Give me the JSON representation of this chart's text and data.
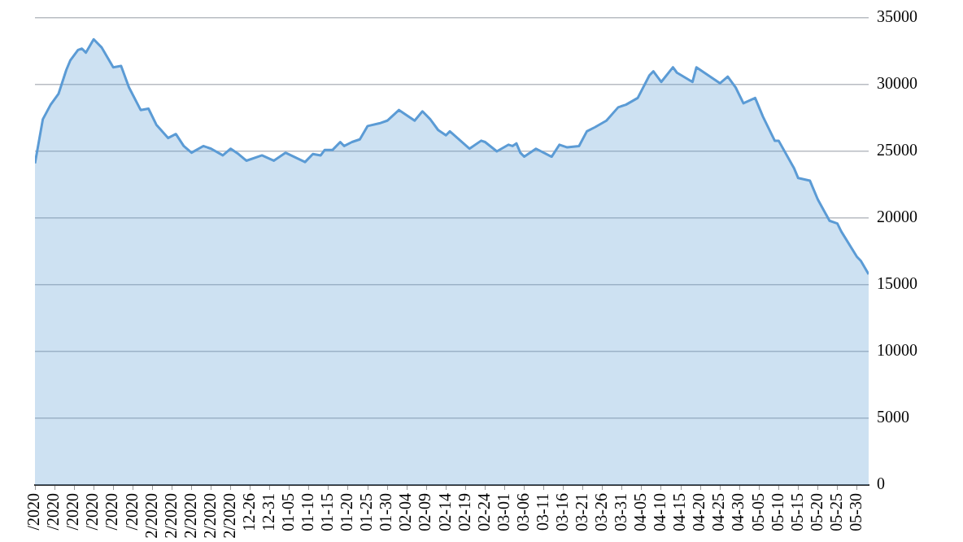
{
  "chart_data": {
    "type": "area",
    "x": [
      "2020-11-01",
      "2020-11-03",
      "2020-11-05",
      "2020-11-07",
      "2020-11-09",
      "2020-11-10",
      "2020-11-12",
      "2020-11-13",
      "2020-11-14",
      "2020-11-16",
      "2020-11-18",
      "2020-11-21",
      "2020-11-23",
      "2020-11-25",
      "2020-11-28",
      "2020-11-30",
      "2020-12-02",
      "2020-12-05",
      "2020-12-07",
      "2020-12-09",
      "2020-12-11",
      "2020-12-14",
      "2020-12-16",
      "2020-12-19",
      "2020-12-21",
      "2020-12-23",
      "2020-12-25",
      "2020-12-29",
      "2021-01-01",
      "2021-01-04",
      "2021-01-09",
      "2021-01-11",
      "2021-01-13",
      "2021-01-14",
      "2021-01-16",
      "2021-01-18",
      "2021-01-19",
      "2021-01-21",
      "2021-01-23",
      "2021-01-25",
      "2021-01-28",
      "2021-01-30",
      "2021-02-02",
      "2021-02-06",
      "2021-02-08",
      "2021-02-10",
      "2021-02-12",
      "2021-02-14",
      "2021-02-15",
      "2021-02-20",
      "2021-02-23",
      "2021-02-24",
      "2021-02-27",
      "2021-03-02",
      "2021-03-03",
      "2021-03-04",
      "2021-03-05",
      "2021-03-06",
      "2021-03-09",
      "2021-03-13",
      "2021-03-15",
      "2021-03-17",
      "2021-03-20",
      "2021-03-22",
      "2021-03-24",
      "2021-03-27",
      "2021-03-30",
      "2021-04-01",
      "2021-04-04",
      "2021-04-07",
      "2021-04-08",
      "2021-04-10",
      "2021-04-13",
      "2021-04-14",
      "2021-04-18",
      "2021-04-19",
      "2021-04-21",
      "2021-04-25",
      "2021-04-27",
      "2021-04-29",
      "2021-05-01",
      "2021-05-04",
      "2021-05-06",
      "2021-05-09",
      "2021-05-10",
      "2021-05-14",
      "2021-05-15",
      "2021-05-18",
      "2021-05-20",
      "2021-05-23",
      "2021-05-25",
      "2021-05-26",
      "2021-05-30",
      "2021-05-31",
      "2021-06-02"
    ],
    "series": [
      {
        "color": "#5b9bd5",
        "values": [
          24100,
          27400,
          28500,
          29300,
          31100,
          31800,
          32600,
          32700,
          32400,
          33400,
          32800,
          31300,
          31400,
          29800,
          28100,
          28200,
          27000,
          26000,
          26300,
          25400,
          24900,
          25400,
          25200,
          24700,
          25200,
          24800,
          24300,
          24700,
          24300,
          24900,
          24200,
          24800,
          24700,
          25100,
          25100,
          25700,
          25400,
          25700,
          25900,
          26900,
          27100,
          27300,
          28100,
          27300,
          28000,
          27400,
          26600,
          26200,
          26500,
          25200,
          25800,
          25700,
          25000,
          25500,
          25400,
          25600,
          24900,
          24600,
          25200,
          24600,
          25500,
          25300,
          25400,
          26500,
          26800,
          27300,
          28300,
          28500,
          29000,
          30700,
          31000,
          30200,
          31300,
          30900,
          30200,
          31300,
          30900,
          30100,
          30600,
          29800,
          28600,
          29000,
          27600,
          25800,
          25800,
          23700,
          23000,
          22800,
          21400,
          19800,
          19600,
          19000,
          17100,
          16800,
          15800
        ]
      }
    ],
    "xlim": [
      "2020-11-01",
      "2021-06-02"
    ],
    "xticks": [
      {
        "value": "2020-11-01",
        "label": "/2020"
      },
      {
        "value": "2020-11-06",
        "label": "/2020"
      },
      {
        "value": "2020-11-11",
        "label": "/2020"
      },
      {
        "value": "2020-11-16",
        "label": "/2020"
      },
      {
        "value": "2020-11-21",
        "label": "/2020"
      },
      {
        "value": "2020-11-26",
        "label": "/2020"
      },
      {
        "value": "2020-12-01",
        "label": "2/2020"
      },
      {
        "value": "2020-12-06",
        "label": "2/2020"
      },
      {
        "value": "2020-12-11",
        "label": "2/2020"
      },
      {
        "value": "2020-12-16",
        "label": "2/2020"
      },
      {
        "value": "2020-12-21",
        "label": "2/2020"
      },
      {
        "value": "2020-12-26",
        "label": "12-26"
      },
      {
        "value": "2020-12-31",
        "label": "12-31"
      },
      {
        "value": "2021-01-05",
        "label": "01-05"
      },
      {
        "value": "2021-01-10",
        "label": "01-10"
      },
      {
        "value": "2021-01-15",
        "label": "01-15"
      },
      {
        "value": "2021-01-20",
        "label": "01-20"
      },
      {
        "value": "2021-01-25",
        "label": "01-25"
      },
      {
        "value": "2021-01-30",
        "label": "01-30"
      },
      {
        "value": "2021-02-04",
        "label": "02-04"
      },
      {
        "value": "2021-02-09",
        "label": "02-09"
      },
      {
        "value": "2021-02-14",
        "label": "02-14"
      },
      {
        "value": "2021-02-19",
        "label": "02-19"
      },
      {
        "value": "2021-02-24",
        "label": "02-24"
      },
      {
        "value": "2021-03-01",
        "label": "03-01"
      },
      {
        "value": "2021-03-06",
        "label": "03-06"
      },
      {
        "value": "2021-03-11",
        "label": "03-11"
      },
      {
        "value": "2021-03-16",
        "label": "03-16"
      },
      {
        "value": "2021-03-21",
        "label": "03-21"
      },
      {
        "value": "2021-03-26",
        "label": "03-26"
      },
      {
        "value": "2021-03-31",
        "label": "03-31"
      },
      {
        "value": "2021-04-05",
        "label": "04-05"
      },
      {
        "value": "2021-04-10",
        "label": "04-10"
      },
      {
        "value": "2021-04-15",
        "label": "04-15"
      },
      {
        "value": "2021-04-20",
        "label": "04-20"
      },
      {
        "value": "2021-04-25",
        "label": "04-25"
      },
      {
        "value": "2021-04-30",
        "label": "04-30"
      },
      {
        "value": "2021-05-05",
        "label": "05-05"
      },
      {
        "value": "2021-05-10",
        "label": "05-10"
      },
      {
        "value": "2021-05-15",
        "label": "05-15"
      },
      {
        "value": "2021-05-20",
        "label": "05-20"
      },
      {
        "value": "2021-05-25",
        "label": "05-25"
      },
      {
        "value": "2021-05-30",
        "label": "05-30"
      }
    ],
    "ylim": [
      0,
      35000
    ],
    "yticks": [
      0,
      5000,
      10000,
      15000,
      20000,
      25000,
      30000,
      35000
    ],
    "grid": "y"
  }
}
